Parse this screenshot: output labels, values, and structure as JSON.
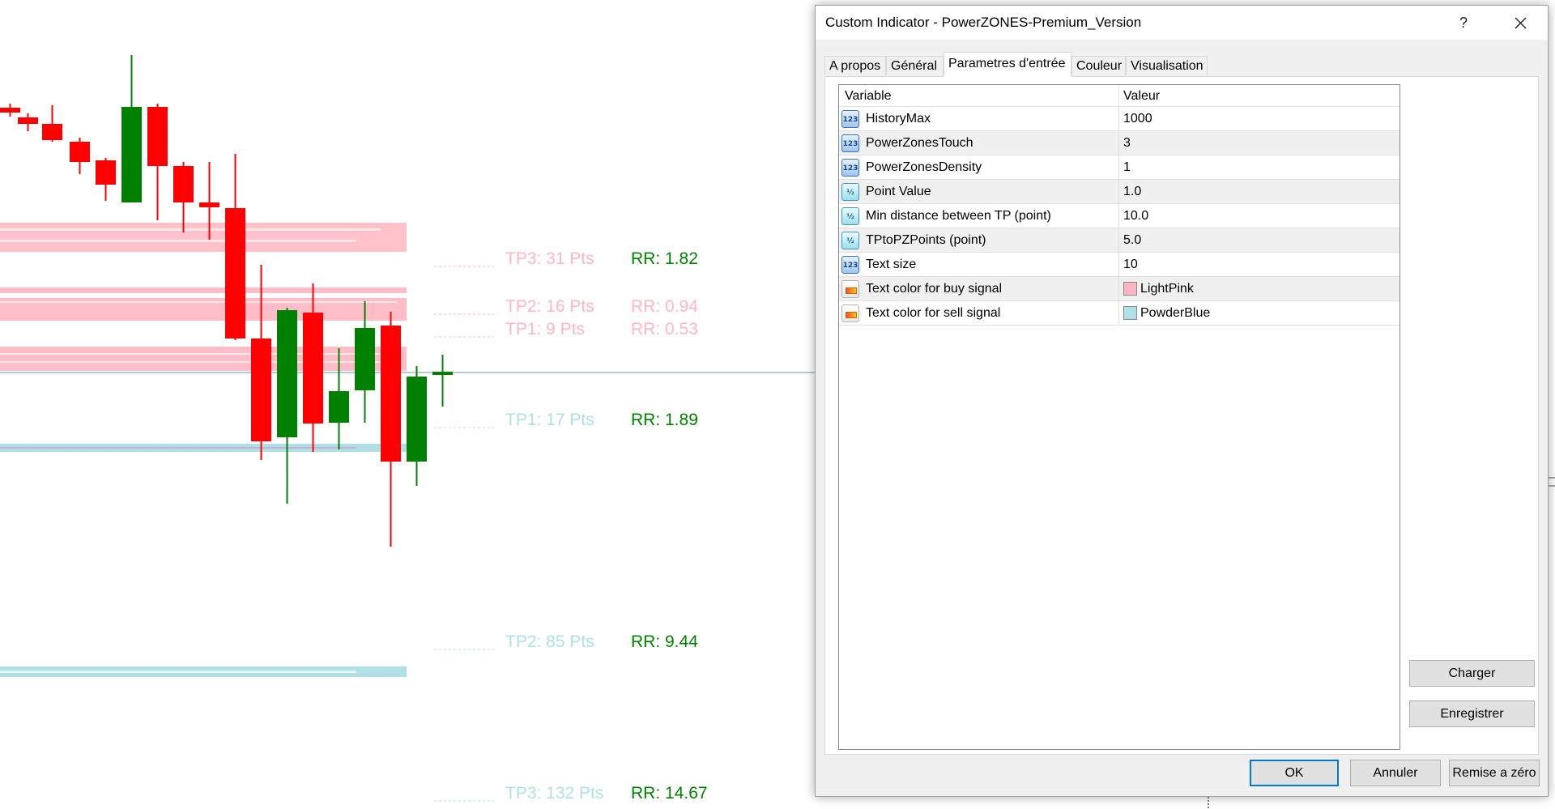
{
  "chart": {
    "labels_buy": [
      {
        "tp": "TP3: 31 Pts",
        "rr": "RR: 1.82"
      },
      {
        "tp": "TP2: 16 Pts",
        "rr": "RR: 0.94"
      },
      {
        "tp": "TP1: 9 Pts",
        "rr": "RR: 0.53"
      }
    ],
    "labels_sell": [
      {
        "tp": "TP1: 17 Pts",
        "rr": "RR: 1.89"
      },
      {
        "tp": "TP2: 85 Pts",
        "rr": "RR: 9.44"
      },
      {
        "tp": "TP3: 132 Pts",
        "rr": "RR: 14.67"
      }
    ],
    "colors": {
      "buy_text": "#FFB6C1",
      "sell_text": "#B0E0E6",
      "rr_highlight": "#008000",
      "bear_candle": "#FF0000",
      "bull_candle": "#008000",
      "price_line": "#6d8fb3"
    }
  },
  "dialog": {
    "title": "Custom Indicator - PowerZONES-Premium_Version",
    "help_label": "?",
    "tabs": [
      "A propos",
      "Général",
      "Parametres d'entrée",
      "Couleur",
      "Visualisation"
    ],
    "active_tab": "Parametres d'entrée",
    "grid": {
      "header_variable": "Variable",
      "header_value": "Valeur",
      "rows": [
        {
          "icon": "integer-icon",
          "name": "HistoryMax",
          "value": "1000"
        },
        {
          "icon": "integer-icon",
          "name": "PowerZonesTouch",
          "value": "3"
        },
        {
          "icon": "integer-icon",
          "name": "PowerZonesDensity",
          "value": "1"
        },
        {
          "icon": "double-icon",
          "name": "Point Value",
          "value": "1.0"
        },
        {
          "icon": "double-icon",
          "name": "Min distance between TP (point)",
          "value": "10.0"
        },
        {
          "icon": "double-icon",
          "name": "TPtoPZPoints (point)",
          "value": "5.0"
        },
        {
          "icon": "integer-icon",
          "name": "Text size",
          "value": "10"
        },
        {
          "icon": "color-icon",
          "name": "Text color for buy signal",
          "value": "LightPink",
          "swatch": "#FFB6C1"
        },
        {
          "icon": "color-icon",
          "name": "Text color for sell signal",
          "value": "PowderBlue",
          "swatch": "#B0E0E6"
        }
      ]
    },
    "buttons": {
      "load": "Charger",
      "save": "Enregistrer",
      "ok": "OK",
      "cancel": "Annuler",
      "reset": "Remise a zéro"
    }
  }
}
